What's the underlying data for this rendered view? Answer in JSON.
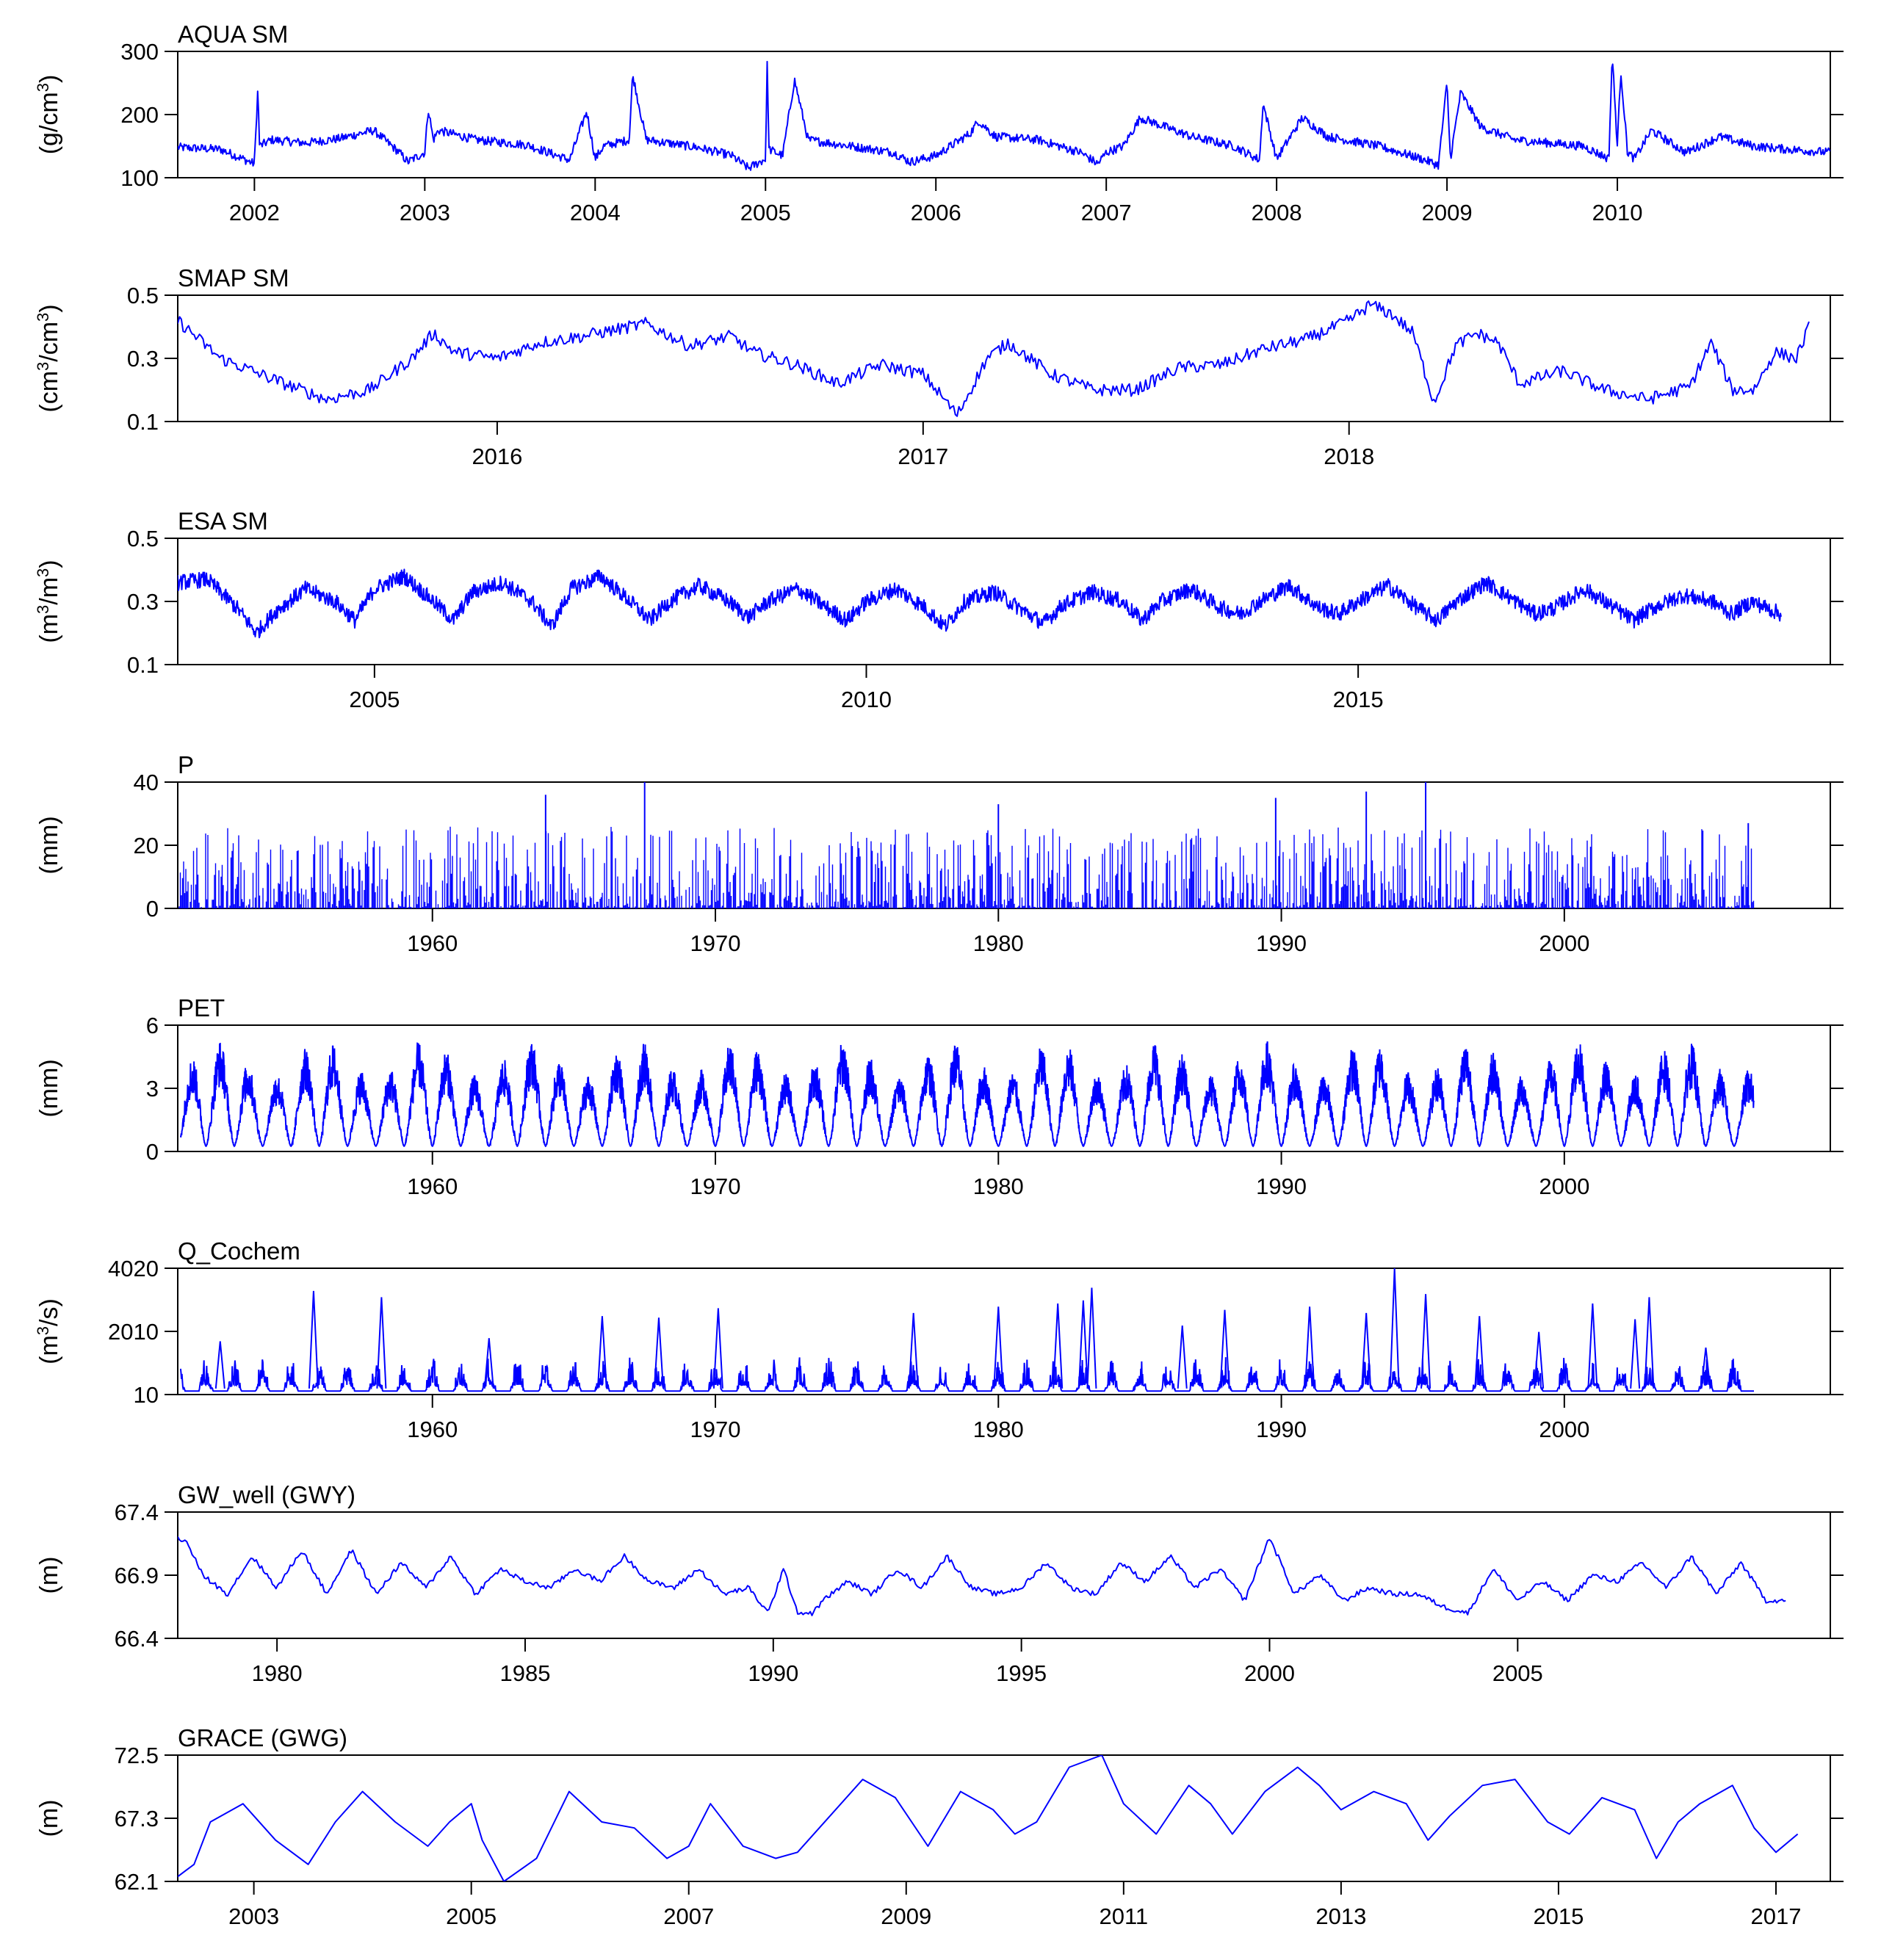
{
  "figure": {
    "line_color": "#0000ff",
    "axis_color": "#000000",
    "background": "#ffffff"
  },
  "chart_data": [
    {
      "id": "aqua",
      "type": "line",
      "title": "AQUA SM",
      "ylabel": {
        "base": "(g/cm",
        "sup": "3",
        "tail": ")"
      },
      "ylim": [
        100,
        300
      ],
      "yticks": [
        "100",
        "200",
        "300"
      ],
      "xlim": [
        2001.55,
        2011.25
      ],
      "xticks": [
        2002,
        2003,
        2004,
        2005,
        2006,
        2007,
        2008,
        2009,
        2010
      ],
      "xtick_labels": [
        "2002",
        "2003",
        "2004",
        "2005",
        "2006",
        "2007",
        "2008",
        "2009",
        "2010"
      ],
      "series": [
        {
          "x": [
            2001.55,
            2001.8,
            2002.0,
            2002.02,
            2002.03,
            2002.1,
            2002.3,
            2002.5,
            2002.7,
            2002.85,
            2002.9,
            2003.0,
            2003.02,
            2003.05,
            2003.08,
            2003.3,
            2003.6,
            2003.85,
            2003.95,
            2004.0,
            2004.05,
            2004.2,
            2004.22,
            2004.3,
            2004.6,
            2004.8,
            2004.9,
            2005.0,
            2005.01,
            2005.02,
            2005.1,
            2005.17,
            2005.25,
            2005.5,
            2005.75,
            2005.85,
            2006.0,
            2006.2,
            2006.25,
            2006.35,
            2006.6,
            2006.85,
            2006.95,
            2007.0,
            2007.1,
            2007.2,
            2007.35,
            2007.5,
            2007.75,
            2007.9,
            2007.92,
            2008.0,
            2008.15,
            2008.3,
            2008.6,
            2008.85,
            2008.95,
            2009.0,
            2009.02,
            2009.08,
            2009.2,
            2009.4,
            2009.6,
            2009.8,
            2009.95,
            2009.97,
            2010.0,
            2010.02,
            2010.06,
            2010.1,
            2010.2,
            2010.4,
            2010.6,
            2010.8,
            2011.0,
            2011.25
          ],
          "y": [
            148,
            145,
            122,
            242,
            150,
            160,
            155,
            162,
            175,
            140,
            125,
            140,
            210,
            160,
            175,
            160,
            152,
            128,
            205,
            130,
            150,
            160,
            263,
            160,
            148,
            135,
            115,
            130,
            283,
            145,
            135,
            255,
            160,
            150,
            140,
            125,
            135,
            170,
            190,
            165,
            160,
            140,
            122,
            140,
            150,
            195,
            180,
            165,
            150,
            128,
            218,
            130,
            195,
            165,
            150,
            130,
            120,
            250,
            130,
            235,
            180,
            160,
            155,
            150,
            130,
            295,
            150,
            270,
            140,
            130,
            175,
            140,
            165,
            150,
            145,
            140
          ]
        }
      ]
    },
    {
      "id": "smap",
      "type": "line",
      "title": "SMAP SM",
      "ylabel": {
        "base": "(cm",
        "sup": "3",
        "mid": "/cm",
        "sup2": "3",
        "tail": ")"
      },
      "ylim": [
        0.1,
        0.5
      ],
      "yticks": [
        "0.1",
        "0.3",
        "0.5"
      ],
      "xlim": [
        2015.25,
        2019.13
      ],
      "xticks": [
        2016,
        2017,
        2018
      ],
      "xtick_labels": [
        "2016",
        "2017",
        "2018"
      ],
      "series": [
        {
          "x": [
            2015.25,
            2015.35,
            2015.5,
            2015.6,
            2015.7,
            2015.8,
            2015.85,
            2015.9,
            2016.0,
            2016.1,
            2016.2,
            2016.35,
            2016.45,
            2016.55,
            2016.6,
            2016.7,
            2016.8,
            2016.9,
            2017.0,
            2017.05,
            2017.08,
            2017.15,
            2017.2,
            2017.3,
            2017.4,
            2017.5,
            2017.6,
            2017.7,
            2017.8,
            2017.9,
            2018.0,
            2018.05,
            2018.1,
            2018.15,
            2018.2,
            2018.25,
            2018.3,
            2018.35,
            2018.4,
            2018.5,
            2018.6,
            2018.7,
            2018.8,
            2018.85,
            2018.9,
            2018.95,
            2019.0,
            2019.05,
            2019.08
          ],
          "y": [
            0.42,
            0.3,
            0.22,
            0.17,
            0.2,
            0.3,
            0.38,
            0.32,
            0.3,
            0.35,
            0.37,
            0.41,
            0.34,
            0.37,
            0.32,
            0.28,
            0.22,
            0.28,
            0.25,
            0.17,
            0.12,
            0.3,
            0.35,
            0.25,
            0.2,
            0.2,
            0.27,
            0.28,
            0.33,
            0.36,
            0.42,
            0.47,
            0.44,
            0.38,
            0.16,
            0.34,
            0.38,
            0.35,
            0.22,
            0.26,
            0.2,
            0.17,
            0.21,
            0.35,
            0.2,
            0.2,
            0.32,
            0.3,
            0.4
          ]
        }
      ]
    },
    {
      "id": "esa",
      "type": "line",
      "title": "ESA SM",
      "ylabel": {
        "base": "(m",
        "sup": "3",
        "mid": "/m",
        "sup2": "3",
        "tail": ")"
      },
      "ylim": [
        0.1,
        0.5
      ],
      "yticks": [
        "0.1",
        "0.3",
        "0.5"
      ],
      "xlim": [
        2003.0,
        2019.8
      ],
      "xticks": [
        2005,
        2010,
        2015
      ],
      "xtick_labels": [
        "2005",
        "2010",
        "2015"
      ],
      "series": [
        {
          "x": [
            2003.0,
            2003.3,
            2003.6,
            2003.8,
            2004.0,
            2004.3,
            2004.6,
            2004.8,
            2005.0,
            2005.3,
            2005.6,
            2005.8,
            2006.0,
            2006.3,
            2006.6,
            2006.8,
            2007.0,
            2007.3,
            2007.6,
            2007.8,
            2008.0,
            2008.3,
            2008.6,
            2008.8,
            2009.0,
            2009.3,
            2009.6,
            2009.8,
            2010.0,
            2010.3,
            2010.6,
            2010.8,
            2011.0,
            2011.3,
            2011.6,
            2011.8,
            2012.0,
            2012.3,
            2012.6,
            2012.8,
            2013.0,
            2013.3,
            2013.6,
            2013.8,
            2014.0,
            2014.3,
            2014.6,
            2014.8,
            2015.0,
            2015.3,
            2015.6,
            2015.8,
            2016.0,
            2016.3,
            2016.6,
            2016.8,
            2017.0,
            2017.3,
            2017.6,
            2017.8,
            2018.0,
            2018.3,
            2018.6,
            2018.8,
            2019.0,
            2019.3
          ],
          "y": [
            0.36,
            0.37,
            0.28,
            0.2,
            0.27,
            0.34,
            0.3,
            0.24,
            0.34,
            0.38,
            0.3,
            0.24,
            0.33,
            0.36,
            0.3,
            0.22,
            0.34,
            0.38,
            0.3,
            0.24,
            0.3,
            0.35,
            0.3,
            0.25,
            0.3,
            0.34,
            0.28,
            0.24,
            0.3,
            0.34,
            0.28,
            0.22,
            0.3,
            0.33,
            0.27,
            0.23,
            0.29,
            0.33,
            0.3,
            0.24,
            0.3,
            0.34,
            0.28,
            0.26,
            0.3,
            0.35,
            0.28,
            0.26,
            0.3,
            0.35,
            0.28,
            0.24,
            0.3,
            0.36,
            0.3,
            0.26,
            0.28,
            0.34,
            0.28,
            0.24,
            0.28,
            0.32,
            0.3,
            0.26,
            0.3,
            0.26
          ]
        }
      ]
    },
    {
      "id": "p",
      "type": "bar",
      "title": "P",
      "ylabel": {
        "base": "(mm)"
      },
      "ylim": [
        0,
        40
      ],
      "yticks": [
        "0",
        "20",
        "40"
      ],
      "xlim": [
        1951.0,
        2009.4
      ],
      "xticks": [
        1960,
        1970,
        1980,
        1990,
        2000
      ],
      "xtick_labels": [
        "1960",
        "1970",
        "1980",
        "1990",
        "2000"
      ],
      "data_end": 2006.7,
      "peaks": {
        "x": [
          1964.0,
          1967.5,
          1980.0,
          1989.8,
          1993.0,
          1995.1,
          2006.5
        ],
        "y": [
          36,
          40,
          33,
          35,
          37,
          40,
          27
        ]
      }
    },
    {
      "id": "pet",
      "type": "line",
      "title": "PET",
      "ylabel": {
        "base": "(mm)"
      },
      "ylim": [
        0,
        6
      ],
      "yticks": [
        "0",
        "3",
        "6"
      ],
      "xlim": [
        1951.0,
        2009.4
      ],
      "xticks": [
        1960,
        1970,
        1980,
        1990,
        2000
      ],
      "xtick_labels": [
        "1960",
        "1970",
        "1980",
        "1990",
        "2000"
      ],
      "data_end": 2006.7,
      "seasonal_peak": 4.6
    },
    {
      "id": "q",
      "type": "line",
      "title": "Q_Cochem",
      "ylabel": {
        "base": "(m",
        "sup": "3",
        "tail": "/s)"
      },
      "ylim": [
        10,
        4020
      ],
      "yticks": [
        "10",
        "2010",
        "4020"
      ],
      "xlim": [
        1951.0,
        2009.4
      ],
      "xticks": [
        1960,
        1970,
        1980,
        1990,
        2000
      ],
      "xtick_labels": [
        "1960",
        "1970",
        "1980",
        "1990",
        "2000"
      ],
      "data_end": 2006.7,
      "peaks": {
        "x": [
          1952.5,
          1955.8,
          1958.2,
          1962.0,
          1966.0,
          1968.0,
          1970.1,
          1977.0,
          1980.0,
          1982.1,
          1983.0,
          1983.3,
          1986.5,
          1988.0,
          1991.0,
          1993.0,
          1994.0,
          1995.1,
          1997.0,
          1999.1,
          2001.0,
          2002.5,
          2003.0,
          2005.0
        ],
        "y": [
          1700,
          3300,
          3100,
          1800,
          2500,
          2450,
          2750,
          2600,
          2800,
          2900,
          3000,
          3400,
          2200,
          2700,
          2800,
          2600,
          4020,
          3200,
          2500,
          2000,
          2900,
          2400,
          3100,
          1500
        ]
      }
    },
    {
      "id": "gw",
      "type": "line",
      "title": "GW_well (GWY)",
      "ylabel": {
        "base": "(m)"
      },
      "ylim": [
        66.4,
        67.4
      ],
      "yticks": [
        "66.4",
        "66.9",
        "67.4"
      ],
      "xlim": [
        1978.0,
        2011.3
      ],
      "xticks": [
        1980,
        1985,
        1990,
        1995,
        2000,
        2005
      ],
      "xtick_labels": [
        "1980",
        "1985",
        "1990",
        "1995",
        "2000",
        "2005"
      ],
      "series": [
        {
          "x": [
            1978.0,
            1978.2,
            1978.5,
            1979.0,
            1979.5,
            1980.0,
            1980.5,
            1981.0,
            1981.5,
            1982.0,
            1982.5,
            1983.0,
            1983.5,
            1984.0,
            1984.5,
            1985.0,
            1985.5,
            1986.0,
            1986.5,
            1987.0,
            1987.5,
            1988.0,
            1988.5,
            1989.0,
            1989.5,
            1989.9,
            1990.2,
            1990.5,
            1990.8,
            1991.0,
            1991.5,
            1992.0,
            1992.5,
            1993.0,
            1993.5,
            1994.0,
            1994.5,
            1995.0,
            1995.5,
            1996.0,
            1996.5,
            1997.0,
            1997.5,
            1998.0,
            1998.5,
            1999.0,
            1999.5,
            2000.0,
            2000.5,
            2001.0,
            2001.5,
            2002.0,
            2002.5,
            2003.0,
            2003.5,
            2004.0,
            2004.5,
            2005.0,
            2005.5,
            2006.0,
            2006.5,
            2007.0,
            2007.5,
            2008.0,
            2008.5,
            2009.0,
            2009.5,
            2010.0,
            2010.4
          ],
          "y": [
            67.2,
            67.15,
            66.9,
            66.75,
            67.05,
            66.8,
            67.1,
            66.75,
            67.1,
            66.75,
            67.0,
            66.8,
            67.05,
            66.75,
            66.95,
            66.85,
            66.8,
            66.95,
            66.85,
            67.05,
            66.85,
            66.8,
            66.95,
            66.75,
            66.8,
            66.6,
            66.95,
            66.6,
            66.6,
            66.7,
            66.85,
            66.75,
            66.95,
            66.8,
            67.05,
            66.8,
            66.75,
            66.8,
            67.0,
            66.8,
            66.75,
            67.0,
            66.85,
            67.05,
            66.8,
            66.95,
            66.7,
            67.2,
            66.75,
            66.9,
            66.7,
            66.8,
            66.75,
            66.75,
            66.65,
            66.6,
            66.95,
            66.7,
            66.85,
            66.7,
            66.9,
            66.85,
            67.0,
            66.8,
            67.05,
            66.75,
            67.0,
            66.7,
            66.7
          ]
        }
      ]
    },
    {
      "id": "grace",
      "type": "line",
      "title": "GRACE (GWG)",
      "ylabel": {
        "base": "(m)"
      },
      "ylim": [
        62.1,
        72.5
      ],
      "yticks": [
        "62.1",
        "67.3",
        "72.5"
      ],
      "xlim": [
        2002.3,
        2017.5
      ],
      "xticks": [
        2003,
        2005,
        2007,
        2009,
        2011,
        2013,
        2015,
        2017
      ],
      "xtick_labels": [
        "2003",
        "2005",
        "2007",
        "2009",
        "2011",
        "2013",
        "2015",
        "2017"
      ],
      "series": [
        {
          "x": [
            2002.3,
            2002.45,
            2002.6,
            2002.9,
            2003.2,
            2003.5,
            2003.75,
            2004.0,
            2004.3,
            2004.6,
            2004.8,
            2005.0,
            2005.1,
            2005.3,
            2005.6,
            2005.9,
            2006.2,
            2006.5,
            2006.8,
            2007.0,
            2007.2,
            2007.5,
            2007.8,
            2008.0,
            2008.3,
            2008.6,
            2008.9,
            2009.2,
            2009.5,
            2009.8,
            2010.0,
            2010.2,
            2010.5,
            2010.8,
            2011.0,
            2011.3,
            2011.6,
            2011.8,
            2012.0,
            2012.3,
            2012.6,
            2012.8,
            2013.0,
            2013.3,
            2013.6,
            2013.8,
            2014.0,
            2014.3,
            2014.6,
            2014.9,
            2015.1,
            2015.4,
            2015.7,
            2015.9,
            2016.1,
            2016.3,
            2016.6,
            2016.8,
            2017.0,
            2017.2
          ],
          "y": [
            62.5,
            63.5,
            67.0,
            68.5,
            65.5,
            63.5,
            67.0,
            69.5,
            67.0,
            65.0,
            67.0,
            68.5,
            65.5,
            62.1,
            64.0,
            69.5,
            67.0,
            66.5,
            64.0,
            65.0,
            68.5,
            65.0,
            64.0,
            64.5,
            67.5,
            70.5,
            69.0,
            65.0,
            69.5,
            68.0,
            66.0,
            67.0,
            71.5,
            72.5,
            68.5,
            66.0,
            70.0,
            68.5,
            66.0,
            69.5,
            71.5,
            70.0,
            68.0,
            69.5,
            68.5,
            65.5,
            67.5,
            70.0,
            70.5,
            67.0,
            66.0,
            69.0,
            68.0,
            64.0,
            67.0,
            68.5,
            70.0,
            66.5,
            64.5,
            66.0
          ]
        }
      ]
    }
  ]
}
